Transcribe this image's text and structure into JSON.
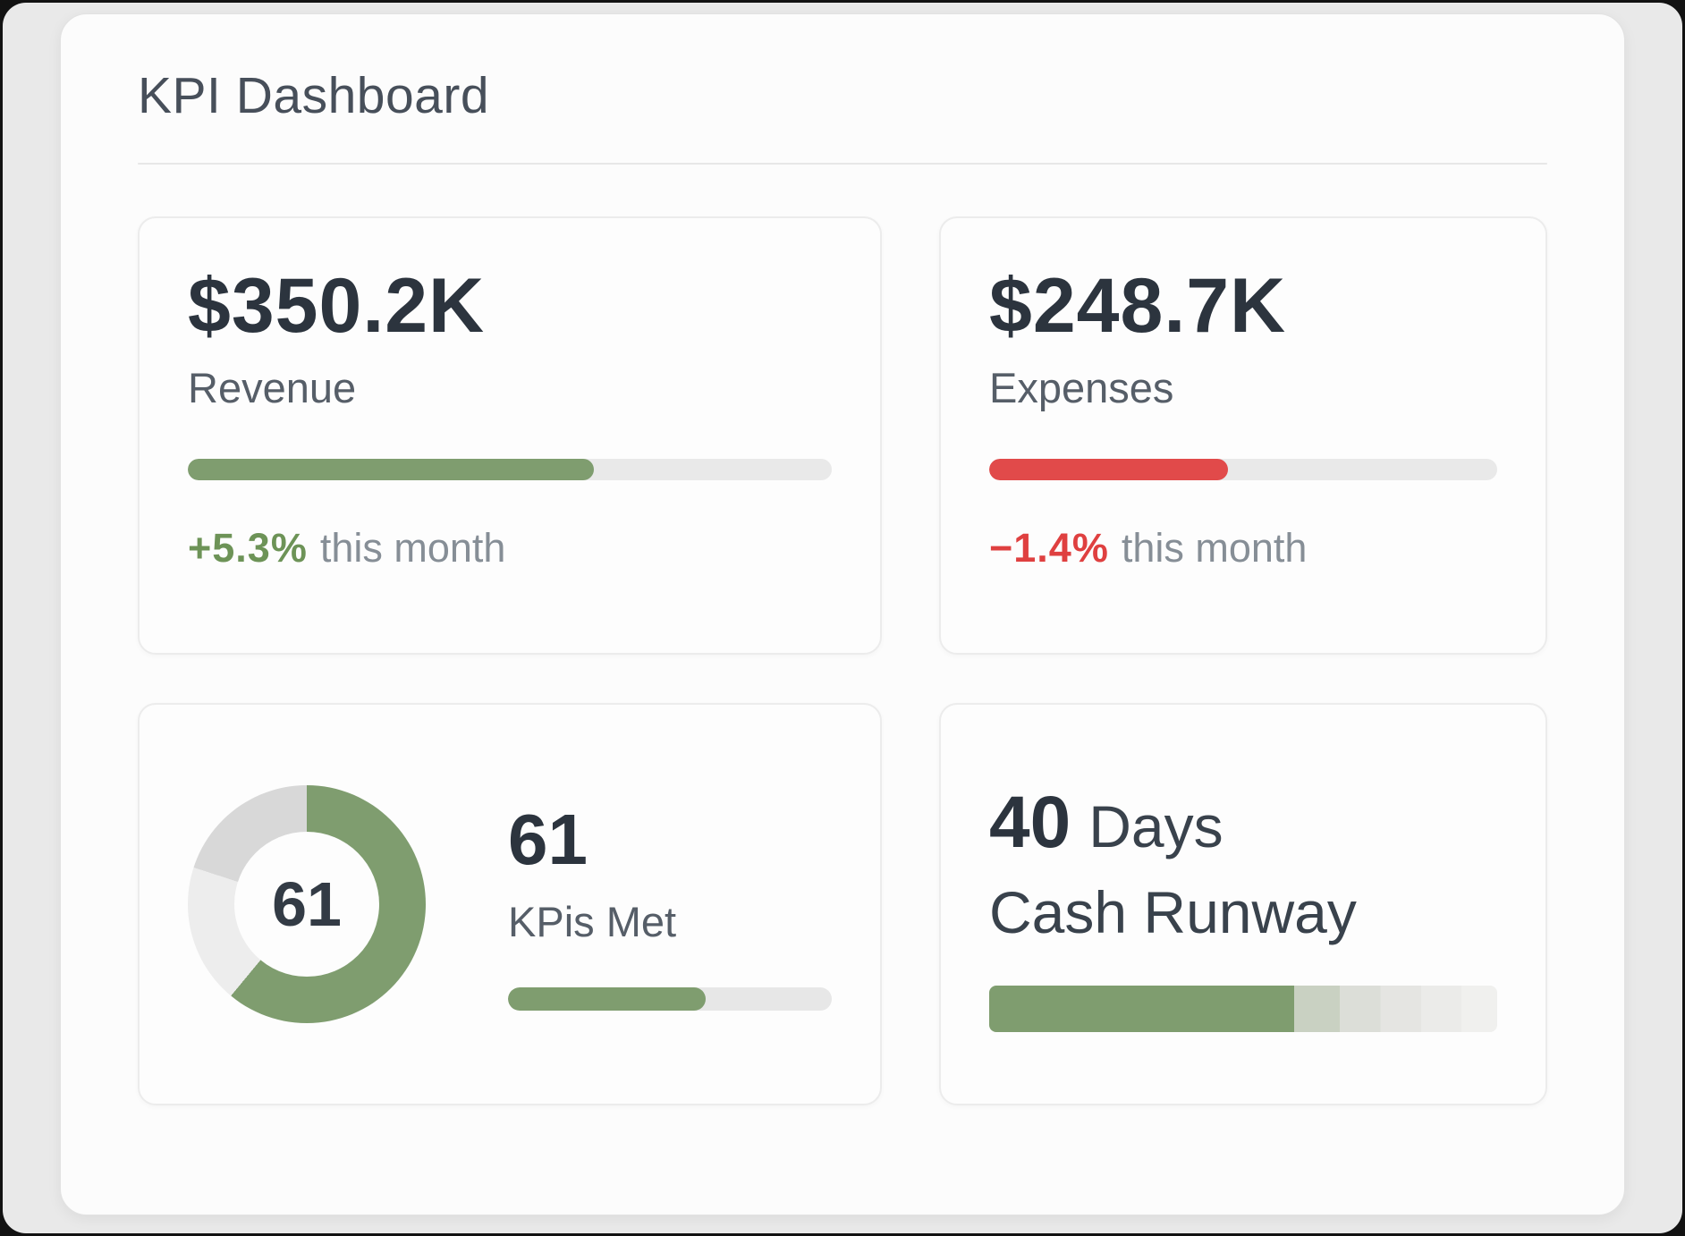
{
  "header": {
    "title": "KPI Dashboard"
  },
  "colors": {
    "green": "#7f9d6f",
    "green_text": "#6d9357",
    "red": "#e14a4a",
    "red_text": "#df4040",
    "track": "#e9e9e9",
    "dark_text": "#2c343e",
    "gray_text": "#565e68"
  },
  "cards": {
    "revenue": {
      "value": "$350.2K",
      "label": "Revenue",
      "bar_pct": 63,
      "delta": "+5.3%",
      "delta_note": "this month"
    },
    "expenses": {
      "value": "$248.7K",
      "label": "Expenses",
      "bar_pct": 47,
      "delta": "−1.4%",
      "delta_note": "this month"
    },
    "kpis_met": {
      "donut_center": "61",
      "value": "61",
      "label": "KPis Met",
      "pct": 61
    },
    "cash_runway": {
      "value": "40",
      "unit": "Days",
      "label": "Cash Runway",
      "bar_pct": 60
    }
  },
  "chart_data": [
    {
      "type": "bar",
      "title": "Revenue",
      "value_label": "$350.2K",
      "value": 350.2,
      "unit": "K USD",
      "progress_pct": 63,
      "change_pct": 5.3,
      "change_label": "+5.3% this month",
      "color": "#7f9d6f"
    },
    {
      "type": "bar",
      "title": "Expenses",
      "value_label": "$248.7K",
      "value": 248.7,
      "unit": "K USD",
      "progress_pct": 47,
      "change_pct": -1.4,
      "change_label": "−1.4% this month",
      "color": "#e14a4a"
    },
    {
      "type": "pie",
      "title": "KPis Met",
      "center_label": "61",
      "value": 61,
      "segments": [
        {
          "label": "met",
          "value": 61,
          "color": "#7f9d6f"
        },
        {
          "label": "remaining",
          "value": 39,
          "color": "#e3e3e3"
        }
      ],
      "progress_pct": 61
    },
    {
      "type": "bar",
      "title": "Cash Runway",
      "value_label": "40 Days",
      "value": 40,
      "unit": "Days",
      "progress_pct": 60,
      "color": "#7f9d6f"
    }
  ]
}
